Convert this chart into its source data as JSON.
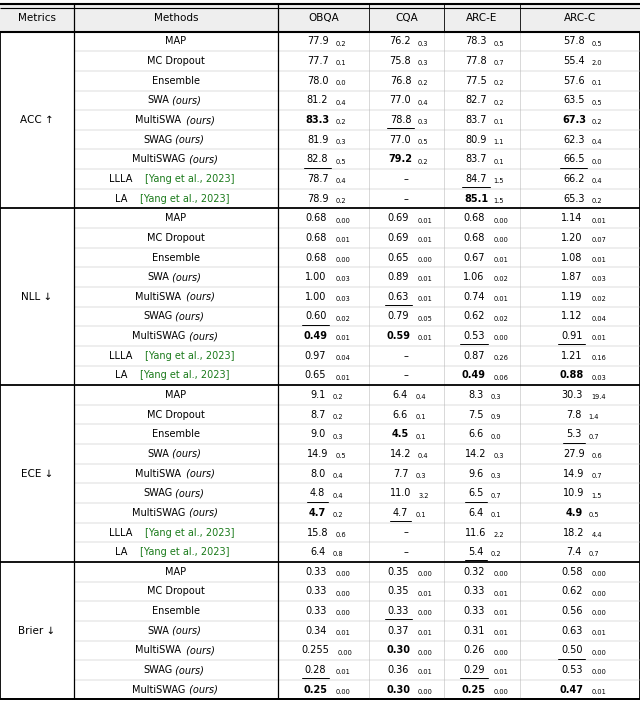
{
  "sections": [
    {
      "metric": "ACC ↑",
      "rows": [
        {
          "method": "MAP",
          "style": "normal",
          "vals": [
            [
              "77.9",
              "0.2",
              false,
              false
            ],
            [
              "76.2",
              "0.3",
              false,
              false
            ],
            [
              "78.3",
              "0.5",
              false,
              false
            ],
            [
              "57.8",
              "0.5",
              false,
              false
            ]
          ]
        },
        {
          "method": "MC Dropout",
          "style": "normal",
          "vals": [
            [
              "77.7",
              "0.1",
              false,
              false
            ],
            [
              "75.8",
              "0.3",
              false,
              false
            ],
            [
              "77.8",
              "0.7",
              false,
              false
            ],
            [
              "55.4",
              "2.0",
              false,
              false
            ]
          ]
        },
        {
          "method": "Ensemble",
          "style": "normal",
          "vals": [
            [
              "78.0",
              "0.0",
              false,
              false
            ],
            [
              "76.8",
              "0.2",
              false,
              false
            ],
            [
              "77.5",
              "0.2",
              false,
              false
            ],
            [
              "57.6",
              "0.1",
              false,
              false
            ]
          ]
        },
        {
          "method": "SWA (ours)",
          "style": "ours",
          "vals": [
            [
              "81.2",
              "0.4",
              false,
              false
            ],
            [
              "77.0",
              "0.4",
              false,
              false
            ],
            [
              "82.7",
              "0.2",
              false,
              false
            ],
            [
              "63.5",
              "0.5",
              false,
              false
            ]
          ]
        },
        {
          "method": "MultiSWA (ours)",
          "style": "ours",
          "vals": [
            [
              "83.3",
              "0.2",
              true,
              false
            ],
            [
              "78.8",
              "0.3",
              false,
              true
            ],
            [
              "83.7",
              "0.1",
              false,
              false
            ],
            [
              "67.3",
              "0.2",
              true,
              false
            ]
          ]
        },
        {
          "method": "SWAG (ours)",
          "style": "ours",
          "vals": [
            [
              "81.9",
              "0.3",
              false,
              false
            ],
            [
              "77.0",
              "0.5",
              false,
              false
            ],
            [
              "80.9",
              "1.1",
              false,
              false
            ],
            [
              "62.3",
              "0.4",
              false,
              false
            ]
          ]
        },
        {
          "method": "MultiSWAG (ours)",
          "style": "ours",
          "vals": [
            [
              "82.8",
              "0.5",
              false,
              true
            ],
            [
              "79.2",
              "0.2",
              true,
              false
            ],
            [
              "83.7",
              "0.1",
              false,
              false
            ],
            [
              "66.5",
              "0.0",
              false,
              true
            ]
          ]
        },
        {
          "method": "LLLA [Yang et al., 2023]",
          "style": "green",
          "vals": [
            [
              "78.7",
              "0.4",
              false,
              false
            ],
            [
              "-",
              "",
              false,
              false
            ],
            [
              "84.7",
              "1.5",
              false,
              true
            ],
            [
              "66.2",
              "0.4",
              false,
              false
            ]
          ]
        },
        {
          "method": "LA [Yang et al., 2023]",
          "style": "green",
          "vals": [
            [
              "78.9",
              "0.2",
              false,
              false
            ],
            [
              "-",
              "",
              false,
              false
            ],
            [
              "85.1",
              "1.5",
              true,
              false
            ],
            [
              "65.3",
              "0.2",
              false,
              false
            ]
          ]
        }
      ]
    },
    {
      "metric": "NLL ↓",
      "rows": [
        {
          "method": "MAP",
          "style": "normal",
          "vals": [
            [
              "0.68",
              "0.00",
              false,
              false
            ],
            [
              "0.69",
              "0.01",
              false,
              false
            ],
            [
              "0.68",
              "0.00",
              false,
              false
            ],
            [
              "1.14",
              "0.01",
              false,
              false
            ]
          ]
        },
        {
          "method": "MC Dropout",
          "style": "normal",
          "vals": [
            [
              "0.68",
              "0.01",
              false,
              false
            ],
            [
              "0.69",
              "0.01",
              false,
              false
            ],
            [
              "0.68",
              "0.00",
              false,
              false
            ],
            [
              "1.20",
              "0.07",
              false,
              false
            ]
          ]
        },
        {
          "method": "Ensemble",
          "style": "normal",
          "vals": [
            [
              "0.68",
              "0.00",
              false,
              false
            ],
            [
              "0.65",
              "0.00",
              false,
              false
            ],
            [
              "0.67",
              "0.01",
              false,
              false
            ],
            [
              "1.08",
              "0.01",
              false,
              false
            ]
          ]
        },
        {
          "method": "SWA (ours)",
          "style": "ours",
          "vals": [
            [
              "1.00",
              "0.03",
              false,
              false
            ],
            [
              "0.89",
              "0.01",
              false,
              false
            ],
            [
              "1.06",
              "0.02",
              false,
              false
            ],
            [
              "1.87",
              "0.03",
              false,
              false
            ]
          ]
        },
        {
          "method": "MultiSWA (ours)",
          "style": "ours",
          "vals": [
            [
              "1.00",
              "0.03",
              false,
              false
            ],
            [
              "0.63",
              "0.01",
              false,
              true
            ],
            [
              "0.74",
              "0.01",
              false,
              false
            ],
            [
              "1.19",
              "0.02",
              false,
              false
            ]
          ]
        },
        {
          "method": "SWAG (ours)",
          "style": "ours",
          "vals": [
            [
              "0.60",
              "0.02",
              false,
              true
            ],
            [
              "0.79",
              "0.05",
              false,
              false
            ],
            [
              "0.62",
              "0.02",
              false,
              false
            ],
            [
              "1.12",
              "0.04",
              false,
              false
            ]
          ]
        },
        {
          "method": "MultiSWAG (ours)",
          "style": "ours",
          "vals": [
            [
              "0.49",
              "0.01",
              true,
              false
            ],
            [
              "0.59",
              "0.01",
              true,
              false
            ],
            [
              "0.53",
              "0.00",
              false,
              true
            ],
            [
              "0.91",
              "0.01",
              false,
              true
            ]
          ]
        },
        {
          "method": "LLLA [Yang et al., 2023]",
          "style": "green",
          "vals": [
            [
              "0.97",
              "0.04",
              false,
              false
            ],
            [
              "-",
              "",
              false,
              false
            ],
            [
              "0.87",
              "0.26",
              false,
              false
            ],
            [
              "1.21",
              "0.16",
              false,
              false
            ]
          ]
        },
        {
          "method": "LA [Yang et al., 2023]",
          "style": "green",
          "vals": [
            [
              "0.65",
              "0.01",
              false,
              false
            ],
            [
              "-",
              "",
              false,
              false
            ],
            [
              "0.49",
              "0.06",
              true,
              false
            ],
            [
              "0.88",
              "0.03",
              true,
              false
            ]
          ]
        }
      ]
    },
    {
      "metric": "ECE ↓",
      "rows": [
        {
          "method": "MAP",
          "style": "normal",
          "vals": [
            [
              "9.1",
              "0.2",
              false,
              false
            ],
            [
              "6.4",
              "0.4",
              false,
              false
            ],
            [
              "8.3",
              "0.3",
              false,
              false
            ],
            [
              "30.3",
              "19.4",
              false,
              false
            ]
          ]
        },
        {
          "method": "MC Dropout",
          "style": "normal",
          "vals": [
            [
              "8.7",
              "0.2",
              false,
              false
            ],
            [
              "6.6",
              "0.1",
              false,
              false
            ],
            [
              "7.5",
              "0.9",
              false,
              false
            ],
            [
              "7.8",
              "1.4",
              false,
              false
            ]
          ]
        },
        {
          "method": "Ensemble",
          "style": "normal",
          "vals": [
            [
              "9.0",
              "0.3",
              false,
              false
            ],
            [
              "4.5",
              "0.1",
              true,
              false
            ],
            [
              "6.6",
              "0.0",
              false,
              false
            ],
            [
              "5.3",
              "0.7",
              false,
              true
            ]
          ]
        },
        {
          "method": "SWA (ours)",
          "style": "ours",
          "vals": [
            [
              "14.9",
              "0.5",
              false,
              false
            ],
            [
              "14.2",
              "0.4",
              false,
              false
            ],
            [
              "14.2",
              "0.3",
              false,
              false
            ],
            [
              "27.9",
              "0.6",
              false,
              false
            ]
          ]
        },
        {
          "method": "MultiSWA (ours)",
          "style": "ours",
          "vals": [
            [
              "8.0",
              "0.4",
              false,
              false
            ],
            [
              "7.7",
              "0.3",
              false,
              false
            ],
            [
              "9.6",
              "0.3",
              false,
              false
            ],
            [
              "14.9",
              "0.7",
              false,
              false
            ]
          ]
        },
        {
          "method": "SWAG (ours)",
          "style": "ours",
          "vals": [
            [
              "4.8",
              "0.4",
              false,
              true
            ],
            [
              "11.0",
              "3.2",
              false,
              false
            ],
            [
              "6.5",
              "0.7",
              false,
              true
            ],
            [
              "10.9",
              "1.5",
              false,
              false
            ]
          ]
        },
        {
          "method": "MultiSWAG (ours)",
          "style": "ours",
          "vals": [
            [
              "4.7",
              "0.2",
              true,
              false
            ],
            [
              "4.7",
              "0.1",
              false,
              true
            ],
            [
              "6.4",
              "0.1",
              false,
              false
            ],
            [
              "4.9",
              "0.5",
              true,
              false
            ]
          ]
        },
        {
          "method": "LLLA [Yang et al., 2023]",
          "style": "green",
          "vals": [
            [
              "15.8",
              "0.6",
              false,
              false
            ],
            [
              "-",
              "",
              false,
              false
            ],
            [
              "11.6",
              "2.2",
              false,
              false
            ],
            [
              "18.2",
              "4.4",
              false,
              false
            ]
          ]
        },
        {
          "method": "LA [Yang et al., 2023]",
          "style": "green",
          "vals": [
            [
              "6.4",
              "0.8",
              false,
              false
            ],
            [
              "-",
              "",
              false,
              false
            ],
            [
              "5.4",
              "0.2",
              false,
              true
            ],
            [
              "7.4",
              "0.7",
              false,
              false
            ]
          ]
        }
      ]
    },
    {
      "metric": "Brier ↓",
      "rows": [
        {
          "method": "MAP",
          "style": "normal",
          "vals": [
            [
              "0.33",
              "0.00",
              false,
              false
            ],
            [
              "0.35",
              "0.00",
              false,
              false
            ],
            [
              "0.32",
              "0.00",
              false,
              false
            ],
            [
              "0.58",
              "0.00",
              false,
              false
            ]
          ]
        },
        {
          "method": "MC Dropout",
          "style": "normal",
          "vals": [
            [
              "0.33",
              "0.00",
              false,
              false
            ],
            [
              "0.35",
              "0.01",
              false,
              false
            ],
            [
              "0.33",
              "0.01",
              false,
              false
            ],
            [
              "0.62",
              "0.00",
              false,
              false
            ]
          ]
        },
        {
          "method": "Ensemble",
          "style": "normal",
          "vals": [
            [
              "0.33",
              "0.00",
              false,
              false
            ],
            [
              "0.33",
              "0.00",
              false,
              true
            ],
            [
              "0.33",
              "0.01",
              false,
              false
            ],
            [
              "0.56",
              "0.00",
              false,
              false
            ]
          ]
        },
        {
          "method": "SWA (ours)",
          "style": "ours",
          "vals": [
            [
              "0.34",
              "0.01",
              false,
              false
            ],
            [
              "0.37",
              "0.01",
              false,
              false
            ],
            [
              "0.31",
              "0.01",
              false,
              false
            ],
            [
              "0.63",
              "0.01",
              false,
              false
            ]
          ]
        },
        {
          "method": "MultiSWA (ours)",
          "style": "ours",
          "vals": [
            [
              "0.255",
              "0.00",
              false,
              false
            ],
            [
              "0.30",
              "0.00",
              true,
              false
            ],
            [
              "0.26",
              "0.00",
              false,
              false
            ],
            [
              "0.50",
              "0.00",
              false,
              true
            ]
          ]
        },
        {
          "method": "SWAG (ours)",
          "style": "ours",
          "vals": [
            [
              "0.28",
              "0.01",
              false,
              true
            ],
            [
              "0.36",
              "0.01",
              false,
              false
            ],
            [
              "0.29",
              "0.01",
              false,
              true
            ],
            [
              "0.53",
              "0.00",
              false,
              false
            ]
          ]
        },
        {
          "method": "MultiSWAG (ours)",
          "style": "ours",
          "vals": [
            [
              "0.25",
              "0.00",
              true,
              false
            ],
            [
              "0.30",
              "0.00",
              true,
              false
            ],
            [
              "0.25",
              "0.00",
              true,
              false
            ],
            [
              "0.47",
              "0.01",
              true,
              false
            ]
          ]
        }
      ]
    }
  ],
  "col_headers": [
    "Metrics",
    "Methods",
    "OBQA",
    "CQA",
    "ARC-E",
    "ARC-C"
  ],
  "green_color": "#1a7a1a",
  "black_color": "#000000",
  "line_color": "#000000",
  "light_line": "#bbbbbb",
  "header_bg": "#eeeeee"
}
